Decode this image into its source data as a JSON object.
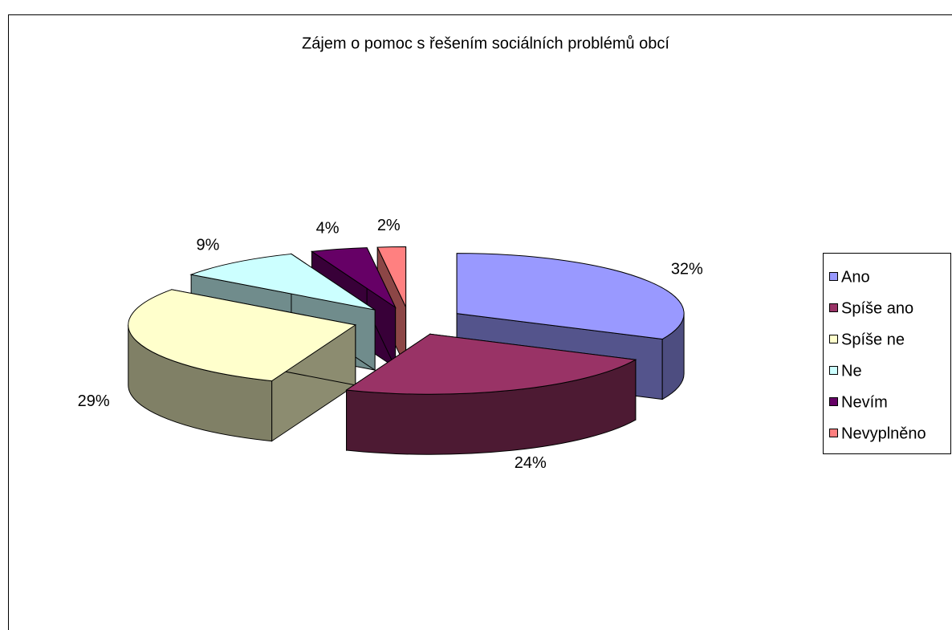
{
  "chart_data": {
    "type": "pie3d",
    "title": "Zájem o pomoc s řešením sociálních problémů obcí",
    "categories": [
      "Ano",
      "Spíše ano",
      "Spíše ne",
      "Ne",
      "Nevím",
      "Nevyplněno"
    ],
    "values": [
      32,
      24,
      29,
      9,
      4,
      2
    ],
    "value_labels": [
      "32%",
      "24%",
      "29%",
      "9%",
      "4%",
      "2%"
    ],
    "colors": [
      "#9999ff",
      "#993366",
      "#ffffcc",
      "#ccffff",
      "#660066",
      "#ff8080"
    ],
    "legend": "right"
  }
}
